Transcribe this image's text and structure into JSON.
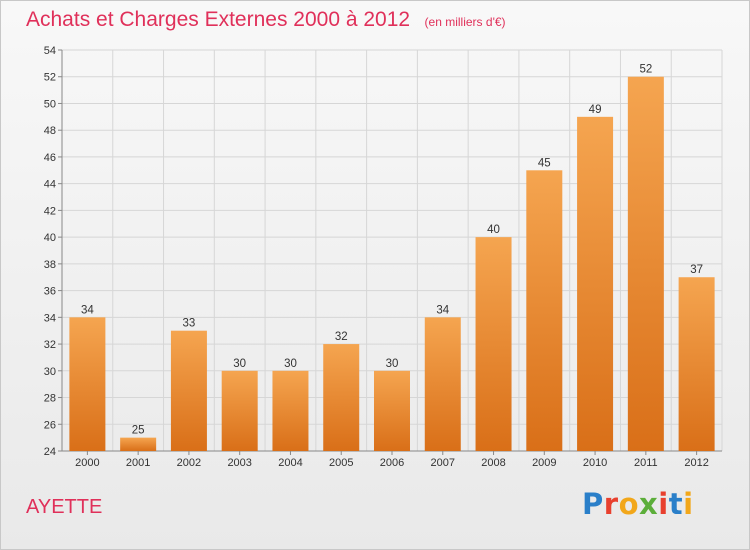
{
  "header": {
    "title": "Achats et Charges Externes 2000 à 2012",
    "subtitle": "(en milliers d'€)"
  },
  "footer": {
    "commune": "AYETTE",
    "logo_text": "Proxiti",
    "logo_colors": [
      "#2a7fc9",
      "#e8402e",
      "#f2a71a",
      "#5cae3a",
      "#e8402e",
      "#2a7fc9",
      "#f2a71a"
    ]
  },
  "chart_data": {
    "type": "bar",
    "categories": [
      "2000",
      "2001",
      "2002",
      "2003",
      "2004",
      "2005",
      "2006",
      "2007",
      "2008",
      "2009",
      "2010",
      "2011",
      "2012"
    ],
    "values": [
      34,
      25,
      33,
      30,
      30,
      32,
      30,
      34,
      40,
      45,
      49,
      52,
      37
    ],
    "ylim": [
      24,
      54
    ],
    "yticks": [
      24,
      26,
      28,
      30,
      32,
      34,
      36,
      38,
      40,
      42,
      44,
      46,
      48,
      50,
      52,
      54
    ],
    "grid": true,
    "bar_color_top": "#f5a550",
    "bar_color_bottom": "#d96f18",
    "title_color": "#e0305a"
  }
}
